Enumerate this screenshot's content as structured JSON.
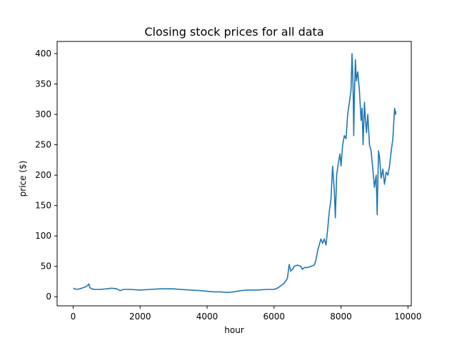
{
  "chart_data": {
    "type": "line",
    "title": "Closing stock prices for all data",
    "xlabel": "hour",
    "ylabel": "price ($)",
    "xlim": [
      -480,
      10100
    ],
    "ylim": [
      -15,
      420
    ],
    "xticks": [
      0,
      2000,
      4000,
      6000,
      8000,
      10000
    ],
    "yticks": [
      0,
      50,
      100,
      150,
      200,
      250,
      300,
      350,
      400
    ],
    "grid": false,
    "series_color": "#1f77b4",
    "series": [
      {
        "points": [
          [
            0,
            14
          ],
          [
            100,
            12
          ],
          [
            200,
            13
          ],
          [
            300,
            15
          ],
          [
            400,
            17
          ],
          [
            470,
            21
          ],
          [
            500,
            15
          ],
          [
            550,
            13
          ],
          [
            650,
            12
          ],
          [
            800,
            12
          ],
          [
            1000,
            13
          ],
          [
            1150,
            14
          ],
          [
            1300,
            13
          ],
          [
            1400,
            10
          ],
          [
            1500,
            12
          ],
          [
            1700,
            12
          ],
          [
            2000,
            11
          ],
          [
            2300,
            12
          ],
          [
            2600,
            13
          ],
          [
            2800,
            13
          ],
          [
            3000,
            13
          ],
          [
            3200,
            12
          ],
          [
            3500,
            11
          ],
          [
            3800,
            10
          ],
          [
            4000,
            9
          ],
          [
            4200,
            8
          ],
          [
            4400,
            8
          ],
          [
            4600,
            7
          ],
          [
            4800,
            8
          ],
          [
            5000,
            10
          ],
          [
            5200,
            11
          ],
          [
            5500,
            11
          ],
          [
            5800,
            12
          ],
          [
            6000,
            12
          ],
          [
            6100,
            14
          ],
          [
            6200,
            18
          ],
          [
            6300,
            22
          ],
          [
            6400,
            30
          ],
          [
            6450,
            53
          ],
          [
            6500,
            42
          ],
          [
            6550,
            45
          ],
          [
            6600,
            50
          ],
          [
            6700,
            52
          ],
          [
            6800,
            50
          ],
          [
            6850,
            45
          ],
          [
            6900,
            48
          ],
          [
            7000,
            48
          ],
          [
            7100,
            50
          ],
          [
            7200,
            52
          ],
          [
            7250,
            60
          ],
          [
            7300,
            75
          ],
          [
            7350,
            85
          ],
          [
            7400,
            95
          ],
          [
            7450,
            88
          ],
          [
            7500,
            95
          ],
          [
            7550,
            85
          ],
          [
            7600,
            110
          ],
          [
            7650,
            140
          ],
          [
            7700,
            160
          ],
          [
            7750,
            215
          ],
          [
            7800,
            175
          ],
          [
            7830,
            130
          ],
          [
            7870,
            200
          ],
          [
            7920,
            220
          ],
          [
            7970,
            235
          ],
          [
            8000,
            215
          ],
          [
            8050,
            250
          ],
          [
            8100,
            265
          ],
          [
            8150,
            260
          ],
          [
            8200,
            300
          ],
          [
            8250,
            320
          ],
          [
            8300,
            340
          ],
          [
            8330,
            400
          ],
          [
            8360,
            350
          ],
          [
            8380,
            265
          ],
          [
            8400,
            330
          ],
          [
            8430,
            390
          ],
          [
            8460,
            355
          ],
          [
            8500,
            370
          ],
          [
            8550,
            340
          ],
          [
            8600,
            290
          ],
          [
            8630,
            310
          ],
          [
            8660,
            250
          ],
          [
            8700,
            320
          ],
          [
            8730,
            290
          ],
          [
            8760,
            270
          ],
          [
            8800,
            300
          ],
          [
            8850,
            250
          ],
          [
            8900,
            240
          ],
          [
            8950,
            210
          ],
          [
            9000,
            180
          ],
          [
            9050,
            200
          ],
          [
            9080,
            135
          ],
          [
            9120,
            240
          ],
          [
            9150,
            230
          ],
          [
            9200,
            195
          ],
          [
            9250,
            210
          ],
          [
            9300,
            185
          ],
          [
            9350,
            205
          ],
          [
            9400,
            200
          ],
          [
            9450,
            215
          ],
          [
            9500,
            240
          ],
          [
            9550,
            260
          ],
          [
            9600,
            310
          ],
          [
            9630,
            300
          ],
          [
            9640,
            305
          ]
        ]
      }
    ]
  }
}
